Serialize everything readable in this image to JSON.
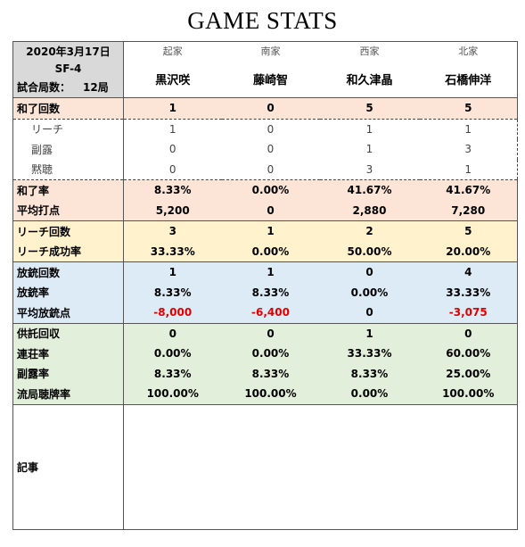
{
  "title": "GAME STATS",
  "header": {
    "date": "2020年3月17日",
    "match_id": "SF-4",
    "games_label": "試合局数：",
    "games_value": "12局",
    "seats": [
      "起家",
      "南家",
      "西家",
      "北家"
    ],
    "players": [
      "黒沢咲",
      "藤崎智",
      "和久津晶",
      "石橋伸洋"
    ]
  },
  "rows": {
    "win_count": {
      "label": "和了回数",
      "values": [
        "1",
        "0",
        "5",
        "5"
      ]
    },
    "riichi_sub": {
      "label": "リーチ",
      "values": [
        "1",
        "0",
        "1",
        "1"
      ]
    },
    "furo_sub": {
      "label": "副露",
      "values": [
        "0",
        "0",
        "1",
        "3"
      ]
    },
    "dama_sub": {
      "label": "黙聴",
      "values": [
        "0",
        "0",
        "3",
        "1"
      ]
    },
    "win_rate": {
      "label": "和了率",
      "values": [
        "8.33%",
        "0.00%",
        "41.67%",
        "41.67%"
      ]
    },
    "avg_points": {
      "label": "平均打点",
      "values": [
        "5,200",
        "0",
        "2,880",
        "7,280"
      ]
    },
    "riichi_count": {
      "label": "リーチ回数",
      "values": [
        "3",
        "1",
        "2",
        "5"
      ]
    },
    "riichi_success": {
      "label": "リーチ成功率",
      "values": [
        "33.33%",
        "0.00%",
        "50.00%",
        "20.00%"
      ]
    },
    "deal_in_count": {
      "label": "放銃回数",
      "values": [
        "1",
        "1",
        "0",
        "4"
      ]
    },
    "deal_in_rate": {
      "label": "放銃率",
      "values": [
        "8.33%",
        "8.33%",
        "0.00%",
        "33.33%"
      ]
    },
    "avg_deal_in": {
      "label": "平均放銃点",
      "values": [
        "-8,000",
        "-6,400",
        "0",
        "-3,075"
      ]
    },
    "kyotaku": {
      "label": "供託回収",
      "values": [
        "0",
        "0",
        "1",
        "0"
      ]
    },
    "renchan_rate": {
      "label": "連荘率",
      "values": [
        "0.00%",
        "0.00%",
        "33.33%",
        "60.00%"
      ]
    },
    "furo_rate": {
      "label": "副露率",
      "values": [
        "8.33%",
        "8.33%",
        "8.33%",
        "25.00%"
      ]
    },
    "tenpai_rate": {
      "label": "流局聴牌率",
      "values": [
        "100.00%",
        "100.00%",
        "0.00%",
        "100.00%"
      ]
    }
  },
  "memo": {
    "label": "記事",
    "text": ""
  },
  "colors": {
    "orange": "#fce4d6",
    "yellow": "#fff2cc",
    "blue": "#ddebf7",
    "green": "#e2efda",
    "header": "#d9d9d9",
    "negative": "#e00000"
  }
}
